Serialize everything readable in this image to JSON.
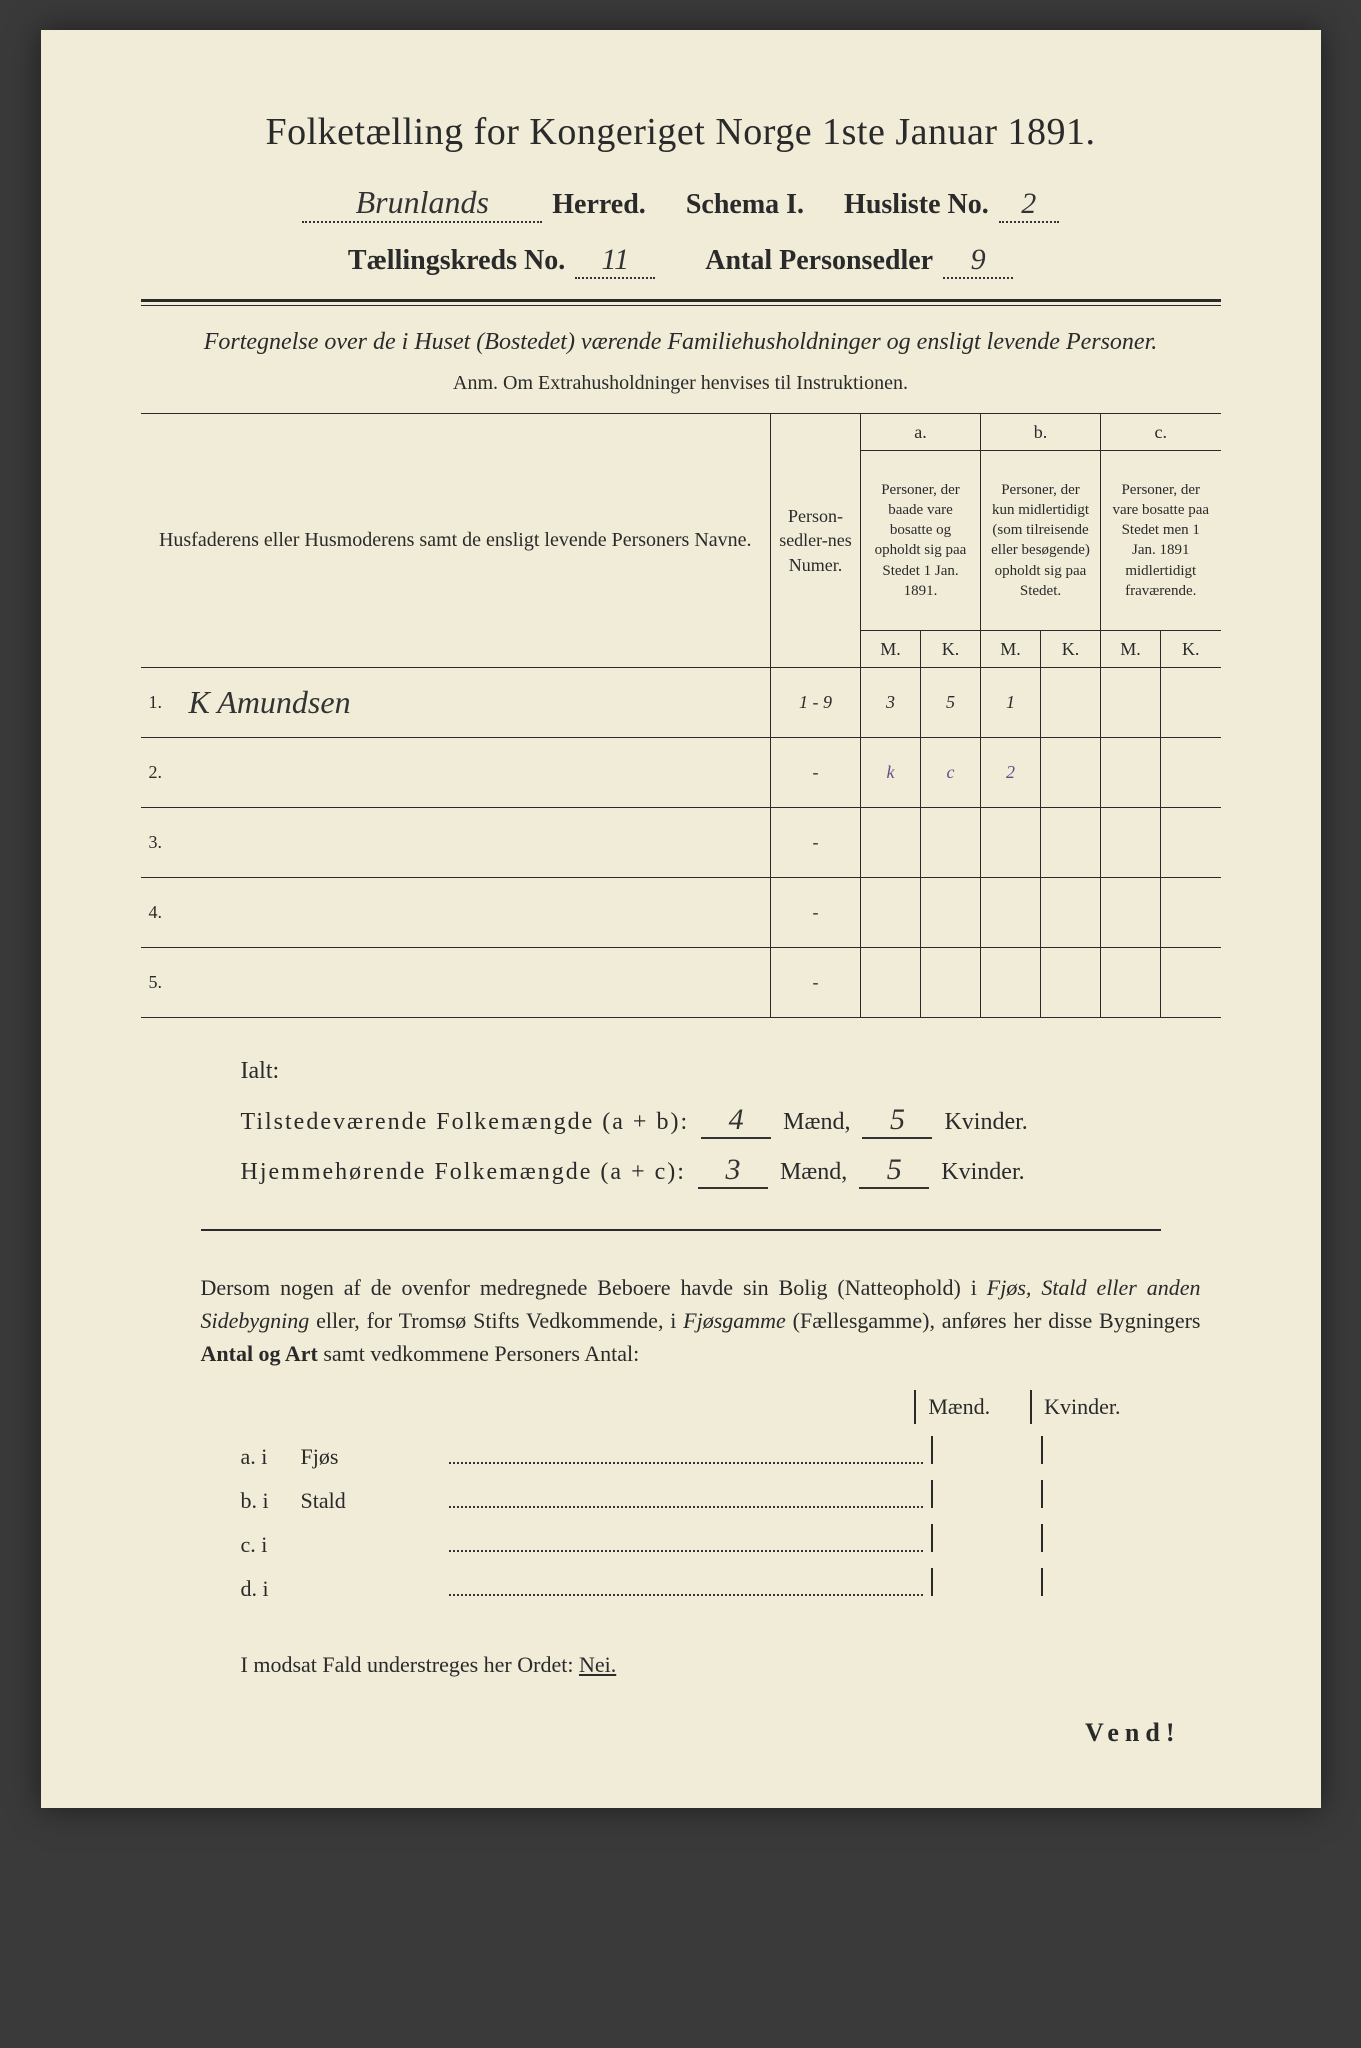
{
  "document": {
    "title": "Folketælling for Kongeriget Norge 1ste Januar 1891.",
    "header": {
      "herred_value": "Brunlands",
      "herred_label": "Herred.",
      "schema_label": "Schema I.",
      "husliste_label": "Husliste No.",
      "husliste_value": "2",
      "kreds_label": "Tællingskreds No.",
      "kreds_value": "11",
      "personsedler_label": "Antal Personsedler",
      "personsedler_value": "9"
    },
    "subtitle": "Fortegnelse over de i Huset (Bostedet) værende Familiehusholdninger og ensligt levende Personer.",
    "anm": "Anm. Om Extrahusholdninger henvises til Instruktionen.",
    "table": {
      "col1": "Husfaderens eller Husmoderens samt de ensligt levende Personers Navne.",
      "col2": "Person-sedler-nes Numer.",
      "col_a_top": "a.",
      "col_a": "Personer, der baade vare bosatte og opholdt sig paa Stedet 1 Jan. 1891.",
      "col_b_top": "b.",
      "col_b": "Personer, der kun midlertidigt (som tilreisende eller besøgende) opholdt sig paa Stedet.",
      "col_c_top": "c.",
      "col_c": "Personer, der vare bosatte paa Stedet men 1 Jan. 1891 midlertidigt fraværende.",
      "m": "M.",
      "k": "K.",
      "rows": [
        {
          "num": "1.",
          "name": "K Amundsen",
          "sedler": "1 - 9",
          "a_m": "3",
          "a_k": "5",
          "b_m": "1",
          "b_k": "",
          "c_m": "",
          "c_k": ""
        },
        {
          "num": "2.",
          "name": "",
          "sedler": "-",
          "a_m": "k",
          "a_k": "c",
          "b_m": "2",
          "b_k": "",
          "c_m": "",
          "c_k": ""
        },
        {
          "num": "3.",
          "name": "",
          "sedler": "-",
          "a_m": "",
          "a_k": "",
          "b_m": "",
          "b_k": "",
          "c_m": "",
          "c_k": ""
        },
        {
          "num": "4.",
          "name": "",
          "sedler": "-",
          "a_m": "",
          "a_k": "",
          "b_m": "",
          "b_k": "",
          "c_m": "",
          "c_k": ""
        },
        {
          "num": "5.",
          "name": "",
          "sedler": "-",
          "a_m": "",
          "a_k": "",
          "b_m": "",
          "b_k": "",
          "c_m": "",
          "c_k": ""
        }
      ]
    },
    "ialt": {
      "label": "Ialt:",
      "row1_label": "Tilstedeværende Folkemængde (a + b):",
      "row1_m": "4",
      "row1_k": "5",
      "row2_label": "Hjemmehørende Folkemængde (a + c):",
      "row2_m": "3",
      "row2_k": "5",
      "maend": "Mænd,",
      "kvinder": "Kvinder."
    },
    "paragraph": "Dersom nogen af de ovenfor medregnede Beboere havde sin Bolig (Natteophold) i Fjøs, Stald eller anden Sidebygning eller, for Tromsø Stifts Vedkommende, i Fjøsgamme (Fællesgamme), anføres her disse Bygningers Antal og Art samt vedkommene Personers Antal:",
    "buildings": {
      "maend": "Mænd.",
      "kvinder": "Kvinder.",
      "rows": [
        {
          "label": "a. i",
          "name": "Fjøs"
        },
        {
          "label": "b. i",
          "name": "Stald"
        },
        {
          "label": "c. i",
          "name": ""
        },
        {
          "label": "d. i",
          "name": ""
        }
      ]
    },
    "bottom": "I modsat Fald understreges her Ordet:",
    "nei": "Nei.",
    "vend": "Vend!"
  },
  "colors": {
    "paper": "#f0ecd8",
    "ink": "#2a2a2a",
    "handwriting": "#333333",
    "purple_ink": "#6a4a8a",
    "background": "#3a3a3a"
  },
  "typography": {
    "title_fontsize": 38,
    "header_fontsize": 28,
    "body_fontsize": 22,
    "table_fontsize": 18,
    "font_family_print": "Georgia, Times New Roman, serif",
    "font_family_script": "Brush Script MT, cursive"
  }
}
